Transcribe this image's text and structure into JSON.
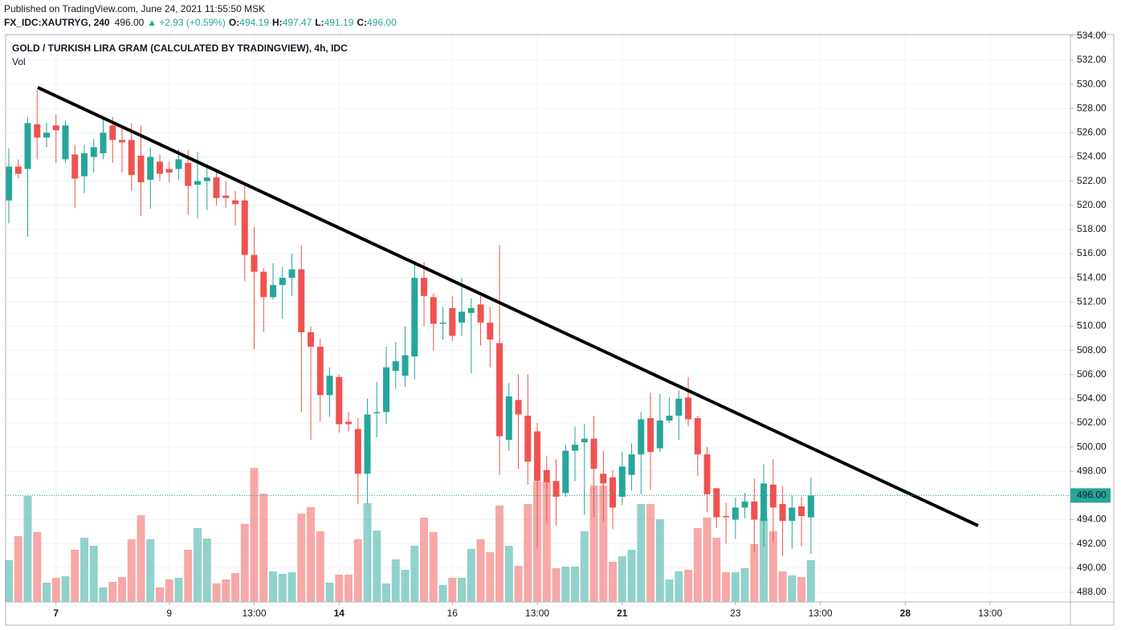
{
  "header": {
    "published": "Published on TradingView.com, June 24, 2021 11:55:50 MSK",
    "symbol": "FX_IDC:XAUTRYG, 240",
    "price": "496.00",
    "change": "+2.93 (+0.59%)",
    "ohlc": [
      {
        "label": "O:",
        "value": "494.19"
      },
      {
        "label": "H:",
        "value": "497.47"
      },
      {
        "label": "L:",
        "value": "491.19"
      },
      {
        "label": "C:",
        "value": "496.00"
      }
    ]
  },
  "chart_data": {
    "type": "candlestick",
    "title": "GOLD / TURKISH LIRA GRAM (CALCULATED BY TRADINGVIEW), 4h, IDC",
    "volume_title": "Vol",
    "up_color": "#26a69a",
    "down_color": "#ef5350",
    "open": [
      520.4,
      523.2,
      523,
      526.7,
      525.6,
      526.6,
      523.8,
      524.2,
      522.4,
      524,
      524.3,
      526.6,
      525.4,
      525.4,
      524.1,
      522.1,
      523.6,
      523,
      523,
      523.5,
      521.7,
      522,
      522.3,
      520.8,
      520.4,
      520.4,
      515.9,
      514.5,
      512.4,
      513.4,
      514,
      514.7,
      509.5,
      508.3,
      504.3,
      505.8,
      502.1,
      501.5,
      497.8,
      502.8,
      502.9,
      506.3,
      505.9,
      507.5,
      514,
      512.4,
      510.2,
      511.5,
      510.3,
      511.1,
      511.8,
      510.3,
      508.6,
      500.6,
      503.9,
      502.6,
      501.3,
      498.1,
      497.2,
      496.2,
      499.7,
      500.4,
      500.7,
      497.8,
      497.5,
      495.9,
      497.7,
      499.4,
      502.4,
      499.9,
      502.2,
      502.6,
      504.1,
      502.4,
      499.4,
      496.6,
      494.3,
      494,
      495,
      495.5,
      493.9,
      496.9,
      495.3,
      493.9,
      495.1,
      494.19
    ],
    "high": [
      524.7,
      523.8,
      527.3,
      529.5,
      526.8,
      527.5,
      527,
      525,
      525,
      525.5,
      527.3,
      527.3,
      526.4,
      526.8,
      526.6,
      524.8,
      524.2,
      523.6,
      524.6,
      524.6,
      524.4,
      523.4,
      522.8,
      522,
      521.2,
      521.6,
      518.2,
      514.8,
      515.2,
      514.9,
      516,
      516.7,
      510,
      509,
      506.6,
      506,
      502.9,
      502.4,
      504,
      505.4,
      508.3,
      508.7,
      510,
      515.1,
      515.3,
      512.7,
      511.6,
      512.5,
      514,
      512.3,
      512.5,
      511.6,
      516.7,
      505.3,
      506,
      506,
      502,
      499.3,
      499,
      500.2,
      501.7,
      501.9,
      502.6,
      499.7,
      498.1,
      499.6,
      500.3,
      502.9,
      504.5,
      504.4,
      504.1,
      504.7,
      505.8,
      502.6,
      500,
      496.6,
      495.4,
      495.8,
      496.2,
      497.4,
      498.6,
      499,
      496.8,
      496,
      495.9,
      497.47
    ],
    "low": [
      518.5,
      522.2,
      517.4,
      523.8,
      524.8,
      523.5,
      523.5,
      519.8,
      521,
      522.7,
      523.8,
      523.5,
      522.7,
      521.2,
      519.1,
      519.7,
      522,
      521.9,
      522.1,
      519.2,
      518.9,
      519.6,
      520,
      519.8,
      518.3,
      513.7,
      508.1,
      509.5,
      512.2,
      510.6,
      512.5,
      502.9,
      500.6,
      502.1,
      502.5,
      501.2,
      501.3,
      495.3,
      495.3,
      500.8,
      501.9,
      504.8,
      505,
      505.6,
      510,
      508,
      508.9,
      508.8,
      509.2,
      506.1,
      508.4,
      506.6,
      497.7,
      499.7,
      498.2,
      496.9,
      491.7,
      493.7,
      493.5,
      495.9,
      497.2,
      494.4,
      494.2,
      493.8,
      493.2,
      495.2,
      496.4,
      496.1,
      496.5,
      499.6,
      502,
      500.6,
      501.7,
      497.6,
      494.6,
      493.3,
      492,
      492.4,
      494.1,
      491.3,
      491.8,
      492.1,
      491,
      491.6,
      491.8,
      491.19
    ],
    "close": [
      523.2,
      522.6,
      526.8,
      525.6,
      526,
      526.2,
      526.6,
      522.2,
      524.3,
      524.8,
      526,
      525.4,
      525.2,
      522.5,
      521.9,
      524,
      522.6,
      522.7,
      523.8,
      521.6,
      522,
      522.3,
      520.6,
      520.6,
      520.1,
      515.9,
      514.5,
      512.4,
      513.4,
      514,
      514.7,
      509.5,
      508.3,
      504.3,
      505.9,
      501.9,
      501.9,
      497.8,
      502.7,
      502.9,
      506.6,
      507.1,
      507.6,
      514,
      512.5,
      510.2,
      510.3,
      509.2,
      511.2,
      511.5,
      510.3,
      508.9,
      500.9,
      504.2,
      502.7,
      498.8,
      497.2,
      497.1,
      495.9,
      499.7,
      500.2,
      500.7,
      498.2,
      497,
      495,
      498.4,
      499.4,
      502.3,
      499.6,
      502.2,
      502.6,
      504,
      502.3,
      499.4,
      496.1,
      494.2,
      494.2,
      495,
      495.5,
      494,
      497,
      495,
      493.9,
      495,
      494.3,
      496
    ],
    "volume": [
      52,
      82,
      132,
      87,
      24,
      30,
      32,
      65,
      80,
      70,
      18,
      25,
      31,
      78,
      108,
      78,
      18,
      28,
      30,
      65,
      92,
      79,
      23,
      28,
      36,
      97,
      167,
      135,
      38,
      35,
      37,
      110,
      118,
      88,
      24,
      34,
      34,
      78,
      123,
      89,
      23,
      53,
      40,
      70,
      105,
      87,
      21,
      30,
      30,
      66,
      78,
      62,
      120,
      70,
      45,
      122,
      150,
      150,
      42,
      44,
      44,
      88,
      145,
      145,
      50,
      57,
      65,
      122,
      122,
      103,
      28,
      38,
      40,
      92,
      105,
      80,
      37,
      37,
      42,
      72,
      105,
      88,
      38,
      33,
      31,
      52
    ],
    "volume_lim": [
      0,
      707
    ],
    "xlim": [
      -0.34,
      112.5
    ],
    "xticks": [
      {
        "value": 5,
        "label": "7",
        "bold": true
      },
      {
        "value": 17,
        "label": "9"
      },
      {
        "value": 26,
        "label": "13:00"
      },
      {
        "value": 35,
        "label": "14",
        "bold": true
      },
      {
        "value": 47,
        "label": "16"
      },
      {
        "value": 56,
        "label": "13:00"
      },
      {
        "value": 65,
        "label": "21",
        "bold": true
      },
      {
        "value": 77,
        "label": "23"
      },
      {
        "value": 86,
        "label": "13:00"
      },
      {
        "value": 95,
        "label": "28",
        "bold": true
      },
      {
        "value": 104,
        "label": "13:00"
      }
    ],
    "ylim": [
      487.2,
      534.12
    ],
    "yticks": [
      {
        "value": 488,
        "label": "488.00"
      },
      {
        "value": 490,
        "label": "490.00"
      },
      {
        "value": 492,
        "label": "492.00"
      },
      {
        "value": 494,
        "label": "494.00"
      },
      {
        "value": 496,
        "label": "496.00"
      },
      {
        "value": 498,
        "label": "498.00"
      },
      {
        "value": 500,
        "label": "500.00"
      },
      {
        "value": 502,
        "label": "502.00"
      },
      {
        "value": 504,
        "label": "504.00"
      },
      {
        "value": 506,
        "label": "506.00"
      },
      {
        "value": 508,
        "label": "508.00"
      },
      {
        "value": 510,
        "label": "510.00"
      },
      {
        "value": 512,
        "label": "512.00"
      },
      {
        "value": 514,
        "label": "514.00"
      },
      {
        "value": 516,
        "label": "516.00"
      },
      {
        "value": 518,
        "label": "518.00"
      },
      {
        "value": 520,
        "label": "520.00"
      },
      {
        "value": 522,
        "label": "522.00"
      },
      {
        "value": 524,
        "label": "524.00"
      },
      {
        "value": 526,
        "label": "526.00"
      },
      {
        "value": 528,
        "label": "528.00"
      },
      {
        "value": 530,
        "label": "530.00"
      },
      {
        "value": 532,
        "label": "532.00"
      },
      {
        "value": 534,
        "label": "534.00"
      }
    ],
    "last_price": {
      "value": 496,
      "label": "496.00"
    },
    "grid": true
  }
}
